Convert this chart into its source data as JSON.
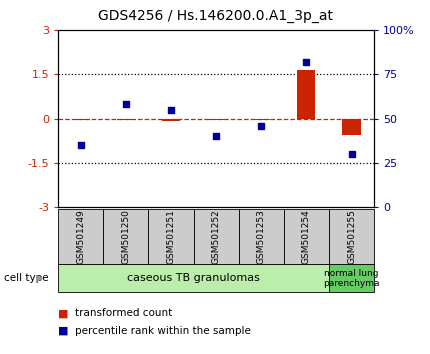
{
  "title": "GDS4256 / Hs.146200.0.A1_3p_at",
  "samples": [
    "GSM501249",
    "GSM501250",
    "GSM501251",
    "GSM501252",
    "GSM501253",
    "GSM501254",
    "GSM501255"
  ],
  "red_values": [
    -0.05,
    -0.05,
    -0.07,
    -0.05,
    -0.05,
    1.65,
    -0.55
  ],
  "blue_values_pct": [
    35,
    58,
    55,
    40,
    46,
    82,
    30
  ],
  "ylim_left": [
    -3,
    3
  ],
  "ylim_right": [
    0,
    100
  ],
  "left_yticks": [
    -3,
    -1.5,
    0,
    1.5,
    3
  ],
  "right_yticks": [
    0,
    25,
    50,
    75,
    100
  ],
  "right_ytick_labels": [
    "0",
    "25",
    "50",
    "75",
    "100%"
  ],
  "cell_type_groups": [
    {
      "label": "caseous TB granulomas",
      "n_samples": 6,
      "color": "#bbeeaa"
    },
    {
      "label": "normal lung\nparenchyma",
      "n_samples": 1,
      "color": "#66cc66"
    }
  ],
  "legend_items": [
    {
      "color": "#cc2200",
      "label": "transformed count"
    },
    {
      "color": "#000099",
      "label": "percentile rank within the sample"
    }
  ],
  "cell_type_label": "cell type",
  "bar_color": "#cc2200",
  "dot_color": "#000099",
  "bg_color": "#ffffff",
  "tick_box_color": "#cccccc",
  "title_fontsize": 10,
  "tick_fontsize": 8,
  "sample_fontsize": 6.5,
  "celltype_fontsize": 8,
  "legend_fontsize": 7.5
}
